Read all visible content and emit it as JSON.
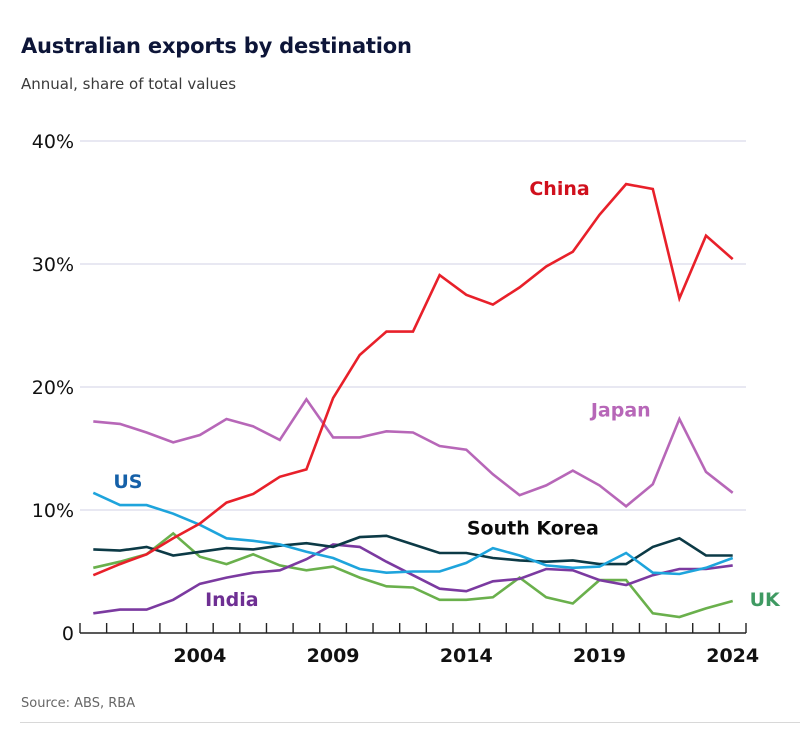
{
  "header": {
    "title": "Australian exports by destination",
    "subtitle": "Annual, share of total values"
  },
  "footer": {
    "source": "Source: ABS, RBA"
  },
  "chart_data": {
    "type": "line",
    "title": "Australian exports by destination",
    "subtitle": "Annual, share of total values",
    "xlabel": "",
    "ylabel": "",
    "x": [
      2000,
      2001,
      2002,
      2003,
      2004,
      2005,
      2006,
      2007,
      2008,
      2009,
      2010,
      2011,
      2012,
      2013,
      2014,
      2015,
      2016,
      2017,
      2018,
      2019,
      2020,
      2021,
      2022,
      2023,
      2024
    ],
    "xlim": [
      1999.5,
      2024.5
    ],
    "xticks": [
      2004,
      2009,
      2014,
      2019,
      2024
    ],
    "xtick_labels": [
      "2004",
      "2009",
      "2014",
      "2019",
      "2024"
    ],
    "ylim": [
      0,
      40
    ],
    "yticks": [
      0,
      10,
      20,
      30,
      40
    ],
    "ytick_labels": [
      "0",
      "10%",
      "20%",
      "30%",
      "40%"
    ],
    "grid": "horizontal",
    "legend": "inline labels",
    "series": [
      {
        "name": "China",
        "color": "#e8202a",
        "label_color": "#d0101d",
        "values": [
          4.7,
          5.6,
          6.4,
          7.7,
          8.9,
          10.6,
          11.3,
          12.7,
          13.3,
          19.1,
          22.6,
          24.5,
          24.5,
          29.1,
          27.5,
          26.7,
          28.1,
          29.8,
          31.0,
          34.0,
          36.5,
          36.1,
          27.2,
          32.3,
          30.4
        ]
      },
      {
        "name": "Japan",
        "color": "#b767b8",
        "label_color": "#b767b8",
        "values": [
          17.2,
          17.0,
          16.3,
          15.5,
          16.1,
          17.4,
          16.8,
          15.7,
          19.0,
          15.9,
          15.9,
          16.4,
          16.3,
          15.2,
          14.9,
          12.9,
          11.2,
          12.0,
          13.2,
          12.0,
          10.3,
          12.1,
          17.4,
          13.1,
          11.4
        ]
      },
      {
        "name": "US",
        "color": "#1ea4dc",
        "label_color": "#1560a8",
        "values": [
          11.4,
          10.4,
          10.4,
          9.7,
          8.8,
          7.7,
          7.5,
          7.2,
          6.6,
          6.1,
          5.2,
          4.9,
          5.0,
          5.0,
          5.7,
          6.9,
          6.3,
          5.5,
          5.3,
          5.4,
          6.5,
          4.9,
          4.8,
          5.3,
          6.1
        ]
      },
      {
        "name": "South Korea",
        "color": "#0c3a46",
        "label_color": "#0a0a0a",
        "values": [
          6.8,
          6.7,
          7.0,
          6.3,
          6.6,
          6.9,
          6.8,
          7.1,
          7.3,
          7.0,
          7.8,
          7.9,
          7.2,
          6.5,
          6.5,
          6.1,
          5.9,
          5.8,
          5.9,
          5.6,
          5.6,
          7.0,
          7.7,
          6.3,
          6.3
        ]
      },
      {
        "name": "India",
        "color": "#7b3aa0",
        "label_color": "#6e2f93",
        "values": [
          1.6,
          1.9,
          1.9,
          2.7,
          4.0,
          4.5,
          4.9,
          5.1,
          6.0,
          7.2,
          7.0,
          5.8,
          4.7,
          3.6,
          3.4,
          4.2,
          4.4,
          5.2,
          5.1,
          4.3,
          3.9,
          4.7,
          5.2,
          5.2,
          5.5
        ]
      },
      {
        "name": "UK",
        "color": "#6ab04c",
        "label_color": "#3f9a62",
        "values": [
          5.3,
          5.8,
          6.4,
          8.1,
          6.2,
          5.6,
          6.4,
          5.5,
          5.1,
          5.4,
          4.5,
          3.8,
          3.7,
          2.7,
          2.7,
          2.9,
          4.5,
          2.9,
          2.4,
          4.3,
          4.3,
          1.6,
          1.3,
          2.0,
          2.6
        ]
      }
    ],
    "annotations": [
      {
        "text": "China",
        "series": "China",
        "x": 2017.5,
        "y": 35.6
      },
      {
        "text": "Japan",
        "series": "Japan",
        "x": 2019.8,
        "y": 17.6
      },
      {
        "text": "US",
        "series": "US",
        "x": 2001.3,
        "y": 11.8
      },
      {
        "text": "South Korea",
        "series": "South Korea",
        "x": 2016.5,
        "y": 8.0
      },
      {
        "text": "India",
        "series": "India",
        "x": 2005.2,
        "y": 2.2
      },
      {
        "text": "UK",
        "series": "UK",
        "x": 2025.2,
        "y": 2.2
      }
    ]
  }
}
